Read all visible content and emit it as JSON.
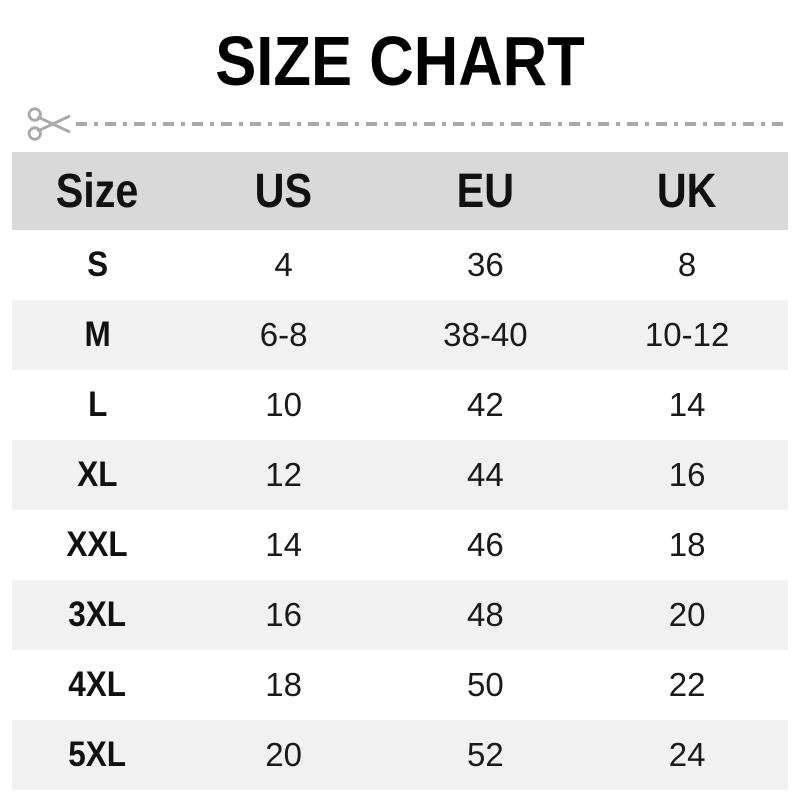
{
  "title": "SIZE CHART",
  "colors": {
    "title_text": "#000000",
    "header_bg": "#d9d9d9",
    "row_alt_bg": "#f1f1f1",
    "row_bg": "#ffffff",
    "cell_text": "#1a1a1a",
    "cut_line": "#a9a9a9"
  },
  "icons": {
    "scissors": "scissors-icon"
  },
  "chart_data": {
    "type": "table",
    "title": "SIZE CHART",
    "columns": [
      "Size",
      "US",
      "EU",
      "UK"
    ],
    "rows": [
      [
        "S",
        "4",
        "36",
        "8"
      ],
      [
        "M",
        "6-8",
        "38-40",
        "10-12"
      ],
      [
        "L",
        "10",
        "42",
        "14"
      ],
      [
        "XL",
        "12",
        "44",
        "16"
      ],
      [
        "XXL",
        "14",
        "46",
        "18"
      ],
      [
        "3XL",
        "16",
        "48",
        "20"
      ],
      [
        "4XL",
        "18",
        "50",
        "22"
      ],
      [
        "5XL",
        "20",
        "52",
        "24"
      ]
    ]
  }
}
